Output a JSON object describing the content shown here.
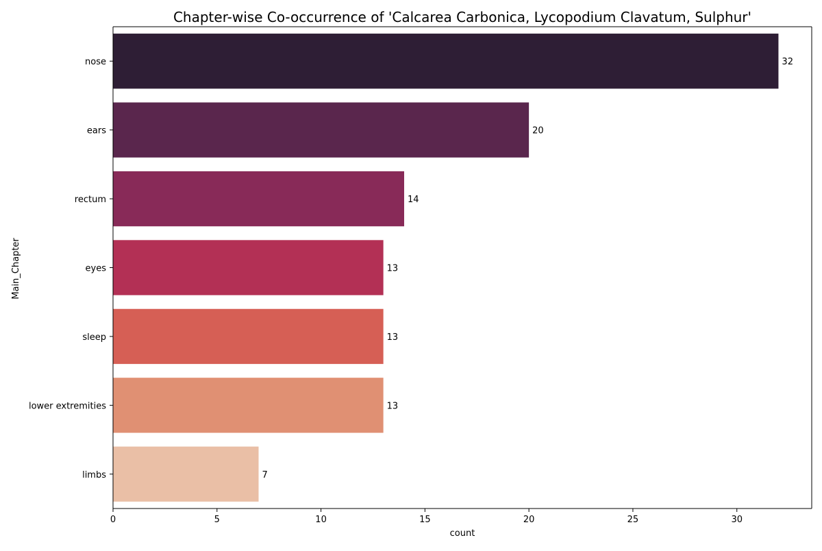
{
  "chart_data": {
    "type": "bar",
    "orientation": "horizontal",
    "title": "Chapter-wise Co-occurrence of 'Calcarea Carbonica, Lycopodium Clavatum, Sulphur'",
    "xlabel": "count",
    "ylabel": "Main_Chapter",
    "categories": [
      "nose",
      "ears",
      "rectum",
      "eyes",
      "sleep",
      "lower extremities",
      "limbs"
    ],
    "values": [
      32,
      20,
      14,
      13,
      13,
      13,
      7
    ],
    "data_labels": [
      "32",
      "20",
      "14",
      "13",
      "13",
      "13",
      "7"
    ],
    "colors": [
      "#2e1e35",
      "#5a264d",
      "#882a58",
      "#b33055",
      "#d65f55",
      "#e09073",
      "#eabfa6"
    ],
    "xlim": [
      0,
      33.6
    ],
    "xticks": [
      0,
      5,
      10,
      15,
      20,
      25,
      30
    ],
    "grid": false,
    "legend": "none"
  }
}
